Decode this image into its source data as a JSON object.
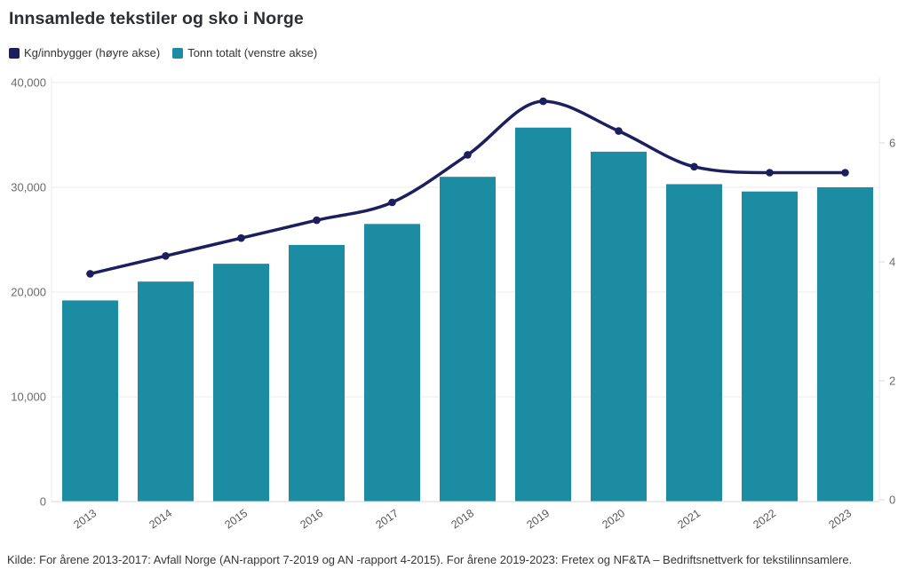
{
  "header": {
    "title": "Innsamlede tekstiler og sko i Norge"
  },
  "legend": [
    {
      "series": "kg",
      "label": "Kg/innbygger (høyre akse)",
      "color": "#1b1f5e"
    },
    {
      "series": "tonn",
      "label": "Tonn totalt (venstre akse)",
      "color": "#1b8ca1"
    }
  ],
  "footer": {
    "source": "Kilde: For årene 2013-2017: Avfall Norge (AN-rapport 7-2019 og AN -rapport 4-2015). For årene 2019-2023: Fretex og NF&TA – Bedriftsnettverk for tekstilinnsamlere."
  },
  "chart_data": {
    "type": "bar+line combo",
    "title": "Innsamlede tekstiler og sko i Norge",
    "categories": [
      "2013",
      "2014",
      "2015",
      "2016",
      "2017",
      "2018",
      "2019",
      "2020",
      "2021",
      "2022",
      "2023"
    ],
    "series": [
      {
        "name": "Tonn totalt (venstre akse)",
        "type": "bar",
        "axis": "left",
        "color": "#1b8ca1",
        "values": [
          19200,
          21000,
          22700,
          24500,
          26500,
          31000,
          35700,
          33400,
          30300,
          29600,
          30000
        ]
      },
      {
        "name": "Kg/innbygger (høyre akse)",
        "type": "line",
        "axis": "right",
        "color": "#1b1f5e",
        "values": [
          3.8,
          4.1,
          4.4,
          4.7,
          5.0,
          5.8,
          6.7,
          6.2,
          5.6,
          5.5,
          5.5
        ]
      }
    ],
    "left_axis": {
      "name": "Tonn totalt",
      "range": [
        0,
        40000
      ],
      "ticks": [
        0,
        10000,
        20000,
        30000,
        40000
      ],
      "tick_format": "thousands-comma"
    },
    "right_axis": {
      "name": "Kg/innbygger",
      "range": [
        0,
        7
      ],
      "ticks": [
        0,
        2,
        4,
        6
      ]
    },
    "grid": "horizontal",
    "legend_position": "top-left",
    "colors": {
      "grid": "#ebebeb",
      "baseline": "#d8d8d8",
      "tick_text": "#6b6b6b",
      "year_text": "#585858"
    }
  }
}
